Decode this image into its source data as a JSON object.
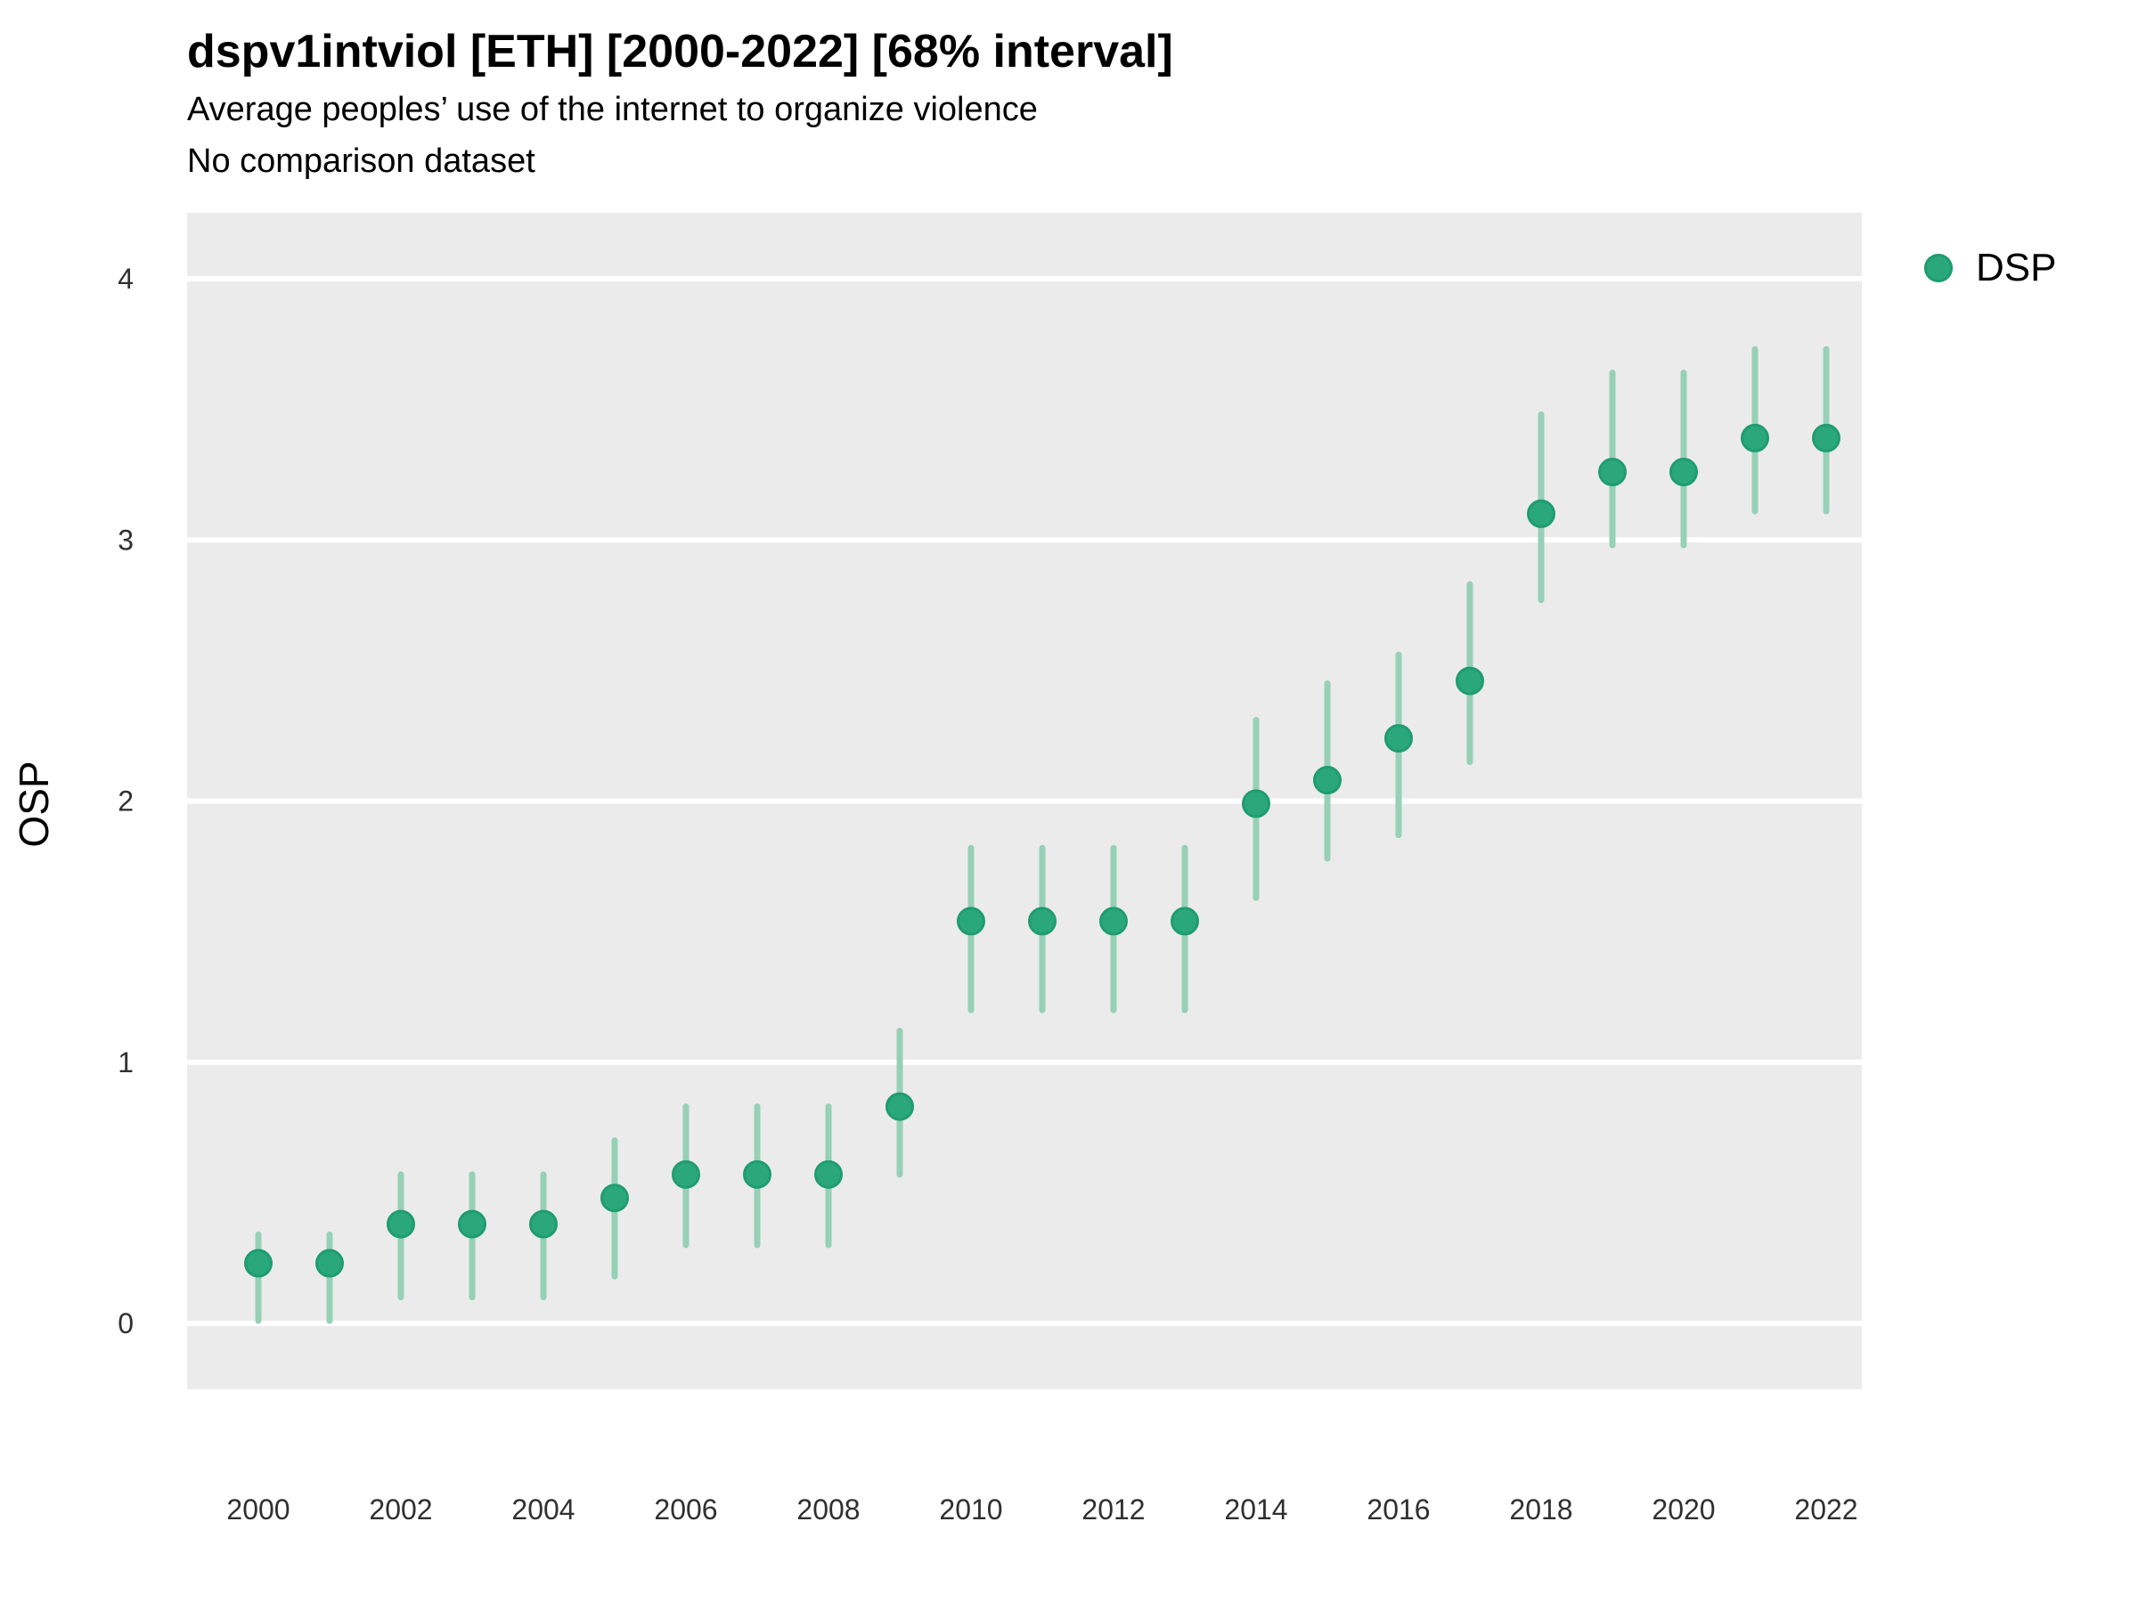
{
  "title": "dspv1intviol [ETH] [2000-2022] [68% interval]",
  "subtitle": "Average peoples’ use of the internet to organize violence",
  "comparison_note": "No comparison dataset",
  "legend": {
    "label": "DSP"
  },
  "y_axis_title": "OSP",
  "colors": {
    "point": "#2aa87c",
    "point_border": "#1f9c70",
    "interval_bar": "#96d0b6",
    "panel_background": "#ebebeb",
    "gridline": "#ffffff",
    "tick_text": "#303030"
  },
  "chart_data": {
    "type": "scatter",
    "title": "dspv1intviol [ETH] [2000-2022] [68% interval]",
    "subtitle": "Average peoples’ use of the internet to organize violence",
    "note": "No comparison dataset",
    "xlabel": "",
    "ylabel": "OSP",
    "interval_level": "68%",
    "country": "ETH",
    "grid": "major-horizontal",
    "legend_position": "right",
    "ylim": [
      -0.25,
      4.25
    ],
    "yticks": [
      0,
      1,
      2,
      3,
      4
    ],
    "xticks": [
      2000,
      2002,
      2004,
      2006,
      2008,
      2010,
      2012,
      2014,
      2016,
      2018,
      2020,
      2022
    ],
    "x": [
      2000,
      2001,
      2002,
      2003,
      2004,
      2005,
      2006,
      2007,
      2008,
      2009,
      2010,
      2011,
      2012,
      2013,
      2014,
      2015,
      2016,
      2017,
      2018,
      2019,
      2020,
      2021,
      2022
    ],
    "series": [
      {
        "name": "DSP",
        "values": [
          0.23,
          0.23,
          0.38,
          0.38,
          0.38,
          0.48,
          0.57,
          0.57,
          0.57,
          0.83,
          1.54,
          1.54,
          1.54,
          1.54,
          1.99,
          2.08,
          2.24,
          2.46,
          3.1,
          3.26,
          3.26,
          3.39,
          3.39
        ],
        "lower": [
          0.01,
          0.01,
          0.1,
          0.1,
          0.1,
          0.18,
          0.3,
          0.3,
          0.3,
          0.57,
          1.2,
          1.2,
          1.2,
          1.2,
          1.63,
          1.78,
          1.87,
          2.15,
          2.77,
          2.98,
          2.98,
          3.11,
          3.11
        ],
        "upper": [
          0.34,
          0.34,
          0.57,
          0.57,
          0.57,
          0.7,
          0.83,
          0.83,
          0.83,
          1.12,
          1.82,
          1.82,
          1.82,
          1.82,
          2.31,
          2.45,
          2.56,
          2.83,
          3.48,
          3.64,
          3.64,
          3.73,
          3.73
        ]
      }
    ]
  }
}
